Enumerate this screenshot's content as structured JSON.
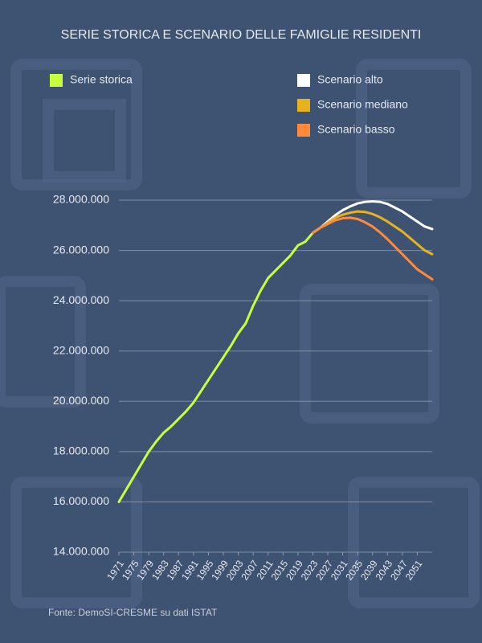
{
  "chart_data": {
    "type": "line",
    "title": "SERIE STORICA E SCENARIO DELLE FAMIGLIE RESIDENTI",
    "source": "Fonte: DemoSI-CRESME su dati ISTAT",
    "x": [
      1971,
      1973,
      1975,
      1977,
      1979,
      1981,
      1983,
      1985,
      1987,
      1989,
      1991,
      1993,
      1995,
      1997,
      1999,
      2001,
      2003,
      2005,
      2007,
      2009,
      2011,
      2013,
      2015,
      2017,
      2019,
      2021,
      2023,
      2025,
      2027,
      2029,
      2031,
      2033,
      2035,
      2037,
      2039,
      2041,
      2043,
      2045,
      2047,
      2049,
      2051,
      2053,
      2055
    ],
    "xlim": [
      1971,
      2055
    ],
    "xticks": [
      1971,
      1975,
      1979,
      1983,
      1987,
      1991,
      1995,
      1999,
      2003,
      2007,
      2011,
      2015,
      2019,
      2023,
      2027,
      2031,
      2035,
      2039,
      2043,
      2047,
      2051
    ],
    "ylim": [
      14000000,
      28000000
    ],
    "yticks": [
      {
        "value": 14000000,
        "label": "14.000.000"
      },
      {
        "value": 16000000,
        "label": "16.000.000"
      },
      {
        "value": 18000000,
        "label": "18.000.000"
      },
      {
        "value": 20000000,
        "label": "20.000.000"
      },
      {
        "value": 22000000,
        "label": "22.000.000"
      },
      {
        "value": 24000000,
        "label": "24.000.000"
      },
      {
        "value": 26000000,
        "label": "26.000.000"
      },
      {
        "value": 28000000,
        "label": "28.000.000"
      }
    ],
    "grid": true,
    "series": [
      {
        "name": "Serie storica",
        "color": "#c8ff3c",
        "values": [
          16000000,
          16500000,
          17000000,
          17500000,
          18000000,
          18400000,
          18750000,
          19000000,
          19300000,
          19600000,
          19950000,
          20400000,
          20850000,
          21300000,
          21750000,
          22200000,
          22700000,
          23100000,
          23800000,
          24400000,
          24900000,
          25200000,
          25500000,
          25800000,
          26200000,
          26350000,
          26700000,
          null,
          null,
          null,
          null,
          null,
          null,
          null,
          null,
          null,
          null,
          null,
          null,
          null,
          null,
          null,
          null
        ]
      },
      {
        "name": "Scenario alto",
        "color": "#ffffff",
        "values": [
          null,
          null,
          null,
          null,
          null,
          null,
          null,
          null,
          null,
          null,
          null,
          null,
          null,
          null,
          null,
          null,
          null,
          null,
          null,
          null,
          null,
          null,
          null,
          null,
          null,
          null,
          26700000,
          26900000,
          27150000,
          27400000,
          27600000,
          27750000,
          27870000,
          27930000,
          27950000,
          27930000,
          27850000,
          27700000,
          27550000,
          27350000,
          27150000,
          26950000,
          26850000
        ]
      },
      {
        "name": "Scenario mediano",
        "color": "#e8b21e",
        "values": [
          null,
          null,
          null,
          null,
          null,
          null,
          null,
          null,
          null,
          null,
          null,
          null,
          null,
          null,
          null,
          null,
          null,
          null,
          null,
          null,
          null,
          null,
          null,
          null,
          null,
          null,
          26700000,
          26900000,
          27100000,
          27300000,
          27420000,
          27500000,
          27550000,
          27530000,
          27450000,
          27320000,
          27150000,
          26950000,
          26750000,
          26500000,
          26250000,
          26000000,
          25850000
        ]
      },
      {
        "name": "Scenario basso",
        "color": "#ff8a3c",
        "values": [
          null,
          null,
          null,
          null,
          null,
          null,
          null,
          null,
          null,
          null,
          null,
          null,
          null,
          null,
          null,
          null,
          null,
          null,
          null,
          null,
          null,
          null,
          null,
          null,
          null,
          null,
          26700000,
          26900000,
          27050000,
          27200000,
          27280000,
          27300000,
          27250000,
          27120000,
          26950000,
          26720000,
          26450000,
          26150000,
          25850000,
          25550000,
          25250000,
          25050000,
          24850000
        ]
      }
    ]
  }
}
